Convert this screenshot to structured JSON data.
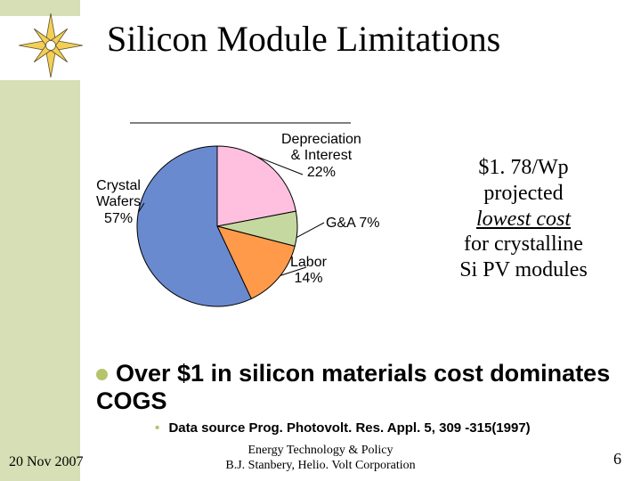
{
  "title": "Silicon Module Limitations",
  "pie": {
    "type": "pie",
    "background_color": "#ffffff",
    "stroke_color": "#000000",
    "stroke_width": 1,
    "font_family": "Arial",
    "label_fontsize": 16,
    "start_angle": 270,
    "direction": "clockwise",
    "leader_color": "#000000",
    "slices": [
      {
        "label_line1": "Depreciation",
        "label_line2": "& Interest",
        "pct_text": "22%",
        "value": 22,
        "color": "#ffc0e0"
      },
      {
        "label_line1": "G&A",
        "label_line2": "",
        "pct_text": "7%",
        "value": 7,
        "color": "#c4d8a0"
      },
      {
        "label_line1": "Labor",
        "label_line2": "",
        "pct_text": "14%",
        "value": 14,
        "color": "#ff9a4a"
      },
      {
        "label_line1": "Crystal",
        "label_line2": "Wafers",
        "pct_text": "57%",
        "value": 57,
        "color": "#6a8ad0"
      }
    ]
  },
  "callout": {
    "line1": "$1. 78/Wp",
    "line2": "projected",
    "line3_italic_underline": "lowest cost",
    "line4": "for crystalline",
    "line5": "Si PV modules"
  },
  "bullet": {
    "text": "Over $1 in silicon materials cost dominates COGS",
    "dot_color": "#b6c36b"
  },
  "citation": {
    "prefix_dot": "•",
    "text": "Data source Prog. Photovolt. Res. Appl. 5, 309 -315(1997)"
  },
  "footer": {
    "date": "20 Nov 2007",
    "center_line1": "Energy Technology & Policy",
    "center_line2": "B.J. Stanbery, Helio. Volt Corporation",
    "page": "6"
  },
  "colors": {
    "sidebar": "#d6dfb5",
    "slide_bg": "#ffffff",
    "bullet_dot": "#b6c36b",
    "logo_yellow": "#f4cf56",
    "logo_dark": "#5a5030"
  }
}
